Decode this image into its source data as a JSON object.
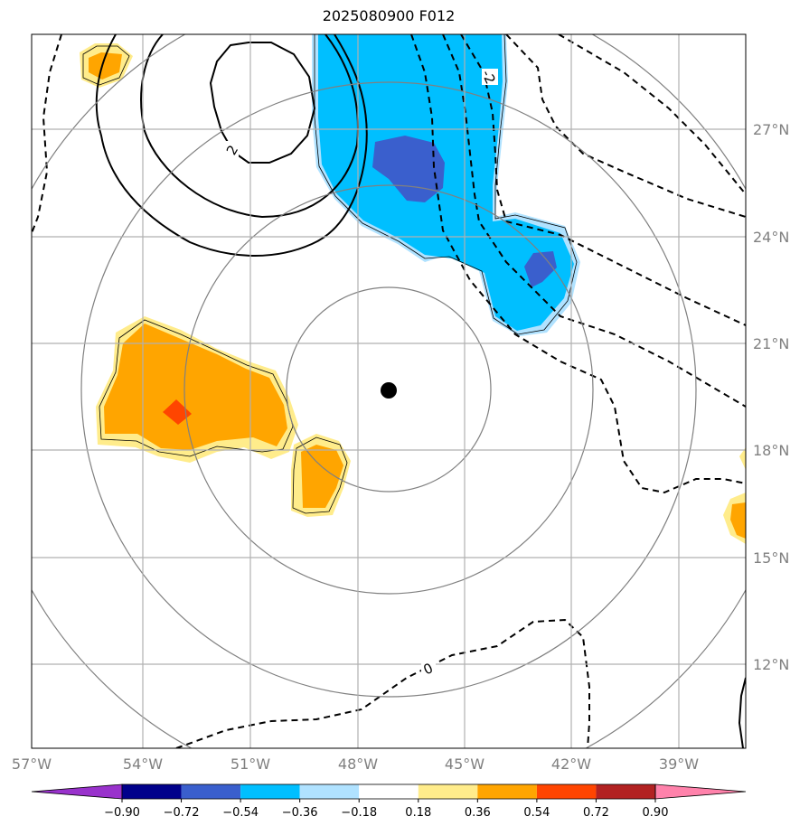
{
  "title": "2025080900 F012",
  "map": {
    "lon_labels": [
      "57°W",
      "54°W",
      "51°W",
      "48°W",
      "45°W",
      "42°W",
      "39°W"
    ],
    "lat_labels": [
      "27°N",
      "24°N",
      "21°N",
      "18°N",
      "15°N",
      "12°N"
    ],
    "lon_range": [
      -57,
      -37
    ],
    "lat_range": [
      9.7,
      29.7
    ],
    "center": {
      "lon": -47.0,
      "lat": 19.5
    },
    "contour_labels": [
      "2",
      "-2",
      "0"
    ]
  },
  "colorbar": {
    "ticks": [
      "−0.90",
      "−0.72",
      "−0.54",
      "−0.36",
      "−0.18",
      "0.18",
      "0.36",
      "0.54",
      "0.72",
      "0.90"
    ],
    "colors": [
      "#9932cc",
      "#00008b",
      "#3a5fcd",
      "#00bfff",
      "#b0e2ff",
      "#ffffff",
      "#ffec8b",
      "#ffa500",
      "#ff4500",
      "#b22222",
      "#ff82ab"
    ]
  }
}
